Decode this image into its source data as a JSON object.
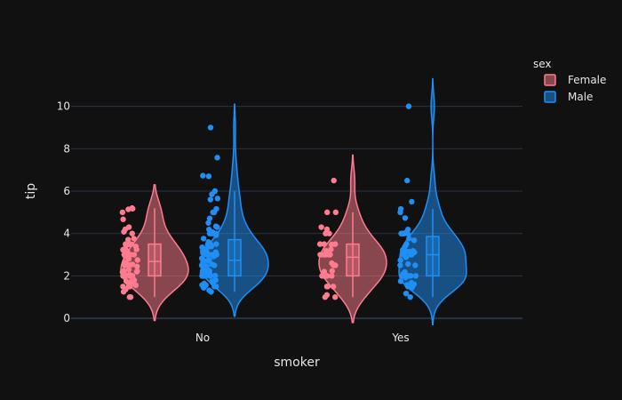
{
  "chart_data": {
    "type": "violin",
    "xlabel": "smoker",
    "ylabel": "tip",
    "categories": [
      "No",
      "Yes"
    ],
    "ylim": [
      -0.5,
      12.5
    ],
    "yticks": [
      0,
      2,
      4,
      6,
      8,
      10
    ],
    "grid": true,
    "legend": {
      "title": "sex",
      "placement": "top-right"
    },
    "series": [
      {
        "name": "Female",
        "color": "#ff7b8e",
        "groups": {
          "No": {
            "box": {
              "min": 1.0,
              "q1": 2.0,
              "median": 2.68,
              "q3": 3.5,
              "max": 5.2
            },
            "violin_range": [
              -0.1,
              6.3
            ],
            "points": [
              1.0,
              1.0,
              1.25,
              1.36,
              1.5,
              1.5,
              1.5,
              1.56,
              1.61,
              1.66,
              1.75,
              1.8,
              1.83,
              2.0,
              2.0,
              2.0,
              2.0,
              2.0,
              2.01,
              2.05,
              2.1,
              2.18,
              2.2,
              2.23,
              2.24,
              2.3,
              2.45,
              2.5,
              2.5,
              2.52,
              2.54,
              2.6,
              2.64,
              2.75,
              2.8,
              2.92,
              3.0,
              3.0,
              3.0,
              3.0,
              3.07,
              3.16,
              3.23,
              3.25,
              3.31,
              3.39,
              3.48,
              3.5,
              3.5,
              3.71,
              3.76,
              4.0,
              4.08,
              4.2,
              4.3,
              4.67,
              5.0,
              5.14,
              5.17,
              5.2
            ]
          },
          "Yes": {
            "box": {
              "min": 1.0,
              "q1": 2.0,
              "median": 2.88,
              "q3": 3.5,
              "max": 5.0
            },
            "violin_range": [
              -0.2,
              7.7
            ],
            "points": [
              1.0,
              1.0,
              1.1,
              1.5,
              1.5,
              1.5,
              2.0,
              2.0,
              2.0,
              2.0,
              2.0,
              2.0,
              2.2,
              2.23,
              2.5,
              2.5,
              2.5,
              2.5,
              2.6,
              3.0,
              3.0,
              3.0,
              3.0,
              3.0,
              3.0,
              3.18,
              3.25,
              3.48,
              3.5,
              3.5,
              3.5,
              4.0,
              4.0,
              4.2,
              4.3,
              5.0,
              5.0,
              6.5
            ]
          }
        }
      },
      {
        "name": "Male",
        "color": "#1f8ff5",
        "groups": {
          "No": {
            "box": {
              "min": 1.25,
              "q1": 2.0,
              "median": 2.74,
              "q3": 3.71,
              "max": 6.0
            },
            "violin_range": [
              0.1,
              10.1
            ],
            "points": [
              1.25,
              1.32,
              1.44,
              1.5,
              1.5,
              1.56,
              1.57,
              1.64,
              1.66,
              1.71,
              1.75,
              1.8,
              2.0,
              2.0,
              2.0,
              2.0,
              2.0,
              2.0,
              2.0,
              2.0,
              2.01,
              2.03,
              2.09,
              2.12,
              2.2,
              2.23,
              2.24,
              2.31,
              2.34,
              2.45,
              2.5,
              2.5,
              2.5,
              2.5,
              2.55,
              2.6,
              2.71,
              2.72,
              2.74,
              2.75,
              2.83,
              2.92,
              3.0,
              3.0,
              3.0,
              3.0,
              3.0,
              3.0,
              3.02,
              3.06,
              3.08,
              3.12,
              3.15,
              3.18,
              3.23,
              3.27,
              3.35,
              3.39,
              3.4,
              3.48,
              3.5,
              3.5,
              3.5,
              3.6,
              3.76,
              3.92,
              4.0,
              4.0,
              4.0,
              4.06,
              4.19,
              4.3,
              4.34,
              4.5,
              4.71,
              5.0,
              5.0,
              5.16,
              5.6,
              5.65,
              5.85,
              6.0,
              6.7,
              6.73,
              7.58,
              9.0
            ]
          },
          "Yes": {
            "box": {
              "min": 1.0,
              "q1": 2.0,
              "median": 3.0,
              "q3": 3.86,
              "max": 5.16
            },
            "violin_range": [
              -0.3,
              11.3
            ],
            "points": [
              1.0,
              1.17,
              1.44,
              1.5,
              1.5,
              1.58,
              1.61,
              1.68,
              1.75,
              1.92,
              2.0,
              2.0,
              2.0,
              2.0,
              2.0,
              2.03,
              2.09,
              2.0,
              2.18,
              2.5,
              2.5,
              2.56,
              2.74,
              2.88,
              3.0,
              3.0,
              3.0,
              3.0,
              3.09,
              3.11,
              3.14,
              3.16,
              3.18,
              3.22,
              3.41,
              3.5,
              3.68,
              3.76,
              4.0,
              4.0,
              4.0,
              4.0,
              4.06,
              4.19,
              4.73,
              5.0,
              5.16,
              5.5,
              6.5,
              10.0
            ]
          }
        }
      }
    ]
  }
}
